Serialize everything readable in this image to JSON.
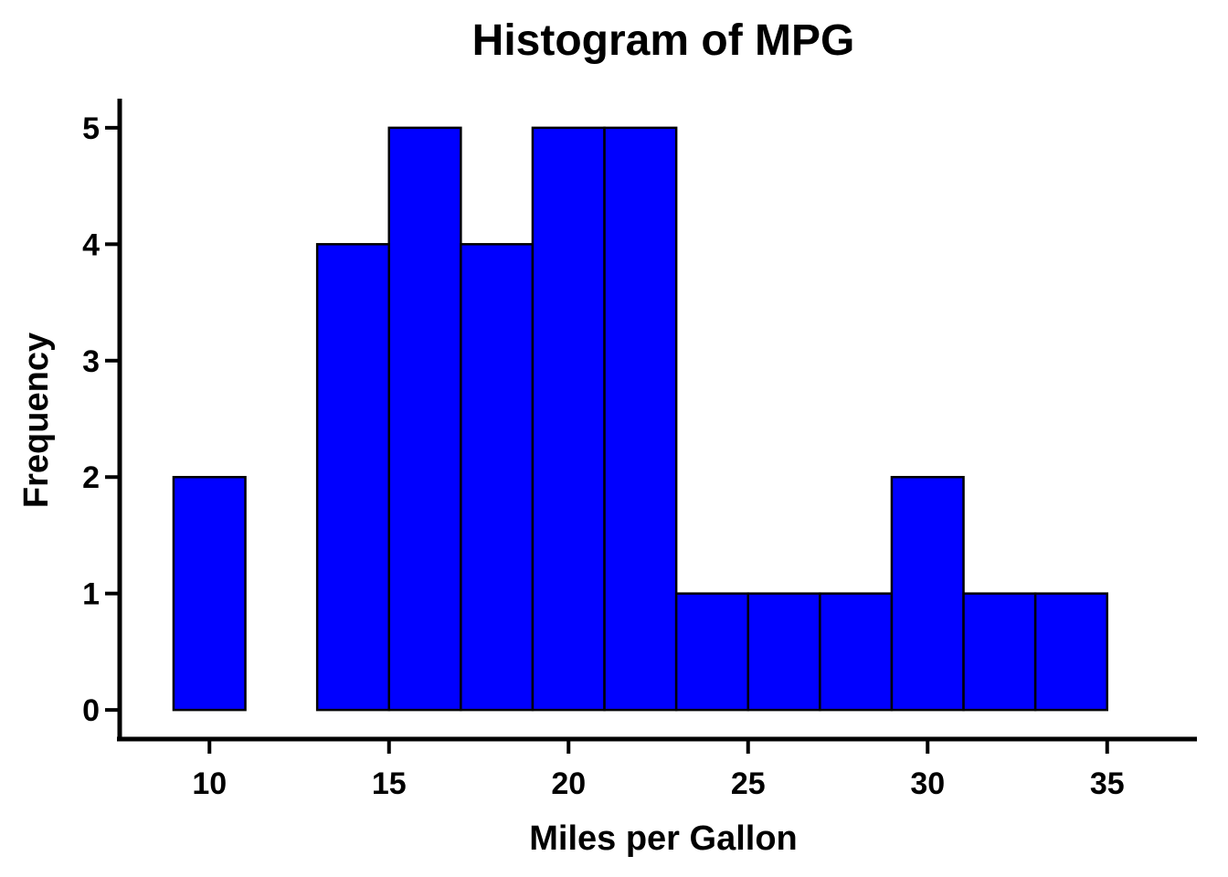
{
  "chart_data": {
    "type": "bar",
    "title": "Histogram of MPG",
    "xlabel": "Miles per Gallon",
    "ylabel": "Frequency",
    "bins": [
      {
        "start": 9,
        "end": 11,
        "count": 2
      },
      {
        "start": 11,
        "end": 13,
        "count": 0
      },
      {
        "start": 13,
        "end": 15,
        "count": 4
      },
      {
        "start": 15,
        "end": 17,
        "count": 5
      },
      {
        "start": 17,
        "end": 19,
        "count": 4
      },
      {
        "start": 19,
        "end": 21,
        "count": 5
      },
      {
        "start": 21,
        "end": 23,
        "count": 5
      },
      {
        "start": 23,
        "end": 25,
        "count": 1
      },
      {
        "start": 25,
        "end": 27,
        "count": 1
      },
      {
        "start": 27,
        "end": 29,
        "count": 1
      },
      {
        "start": 29,
        "end": 31,
        "count": 2
      },
      {
        "start": 31,
        "end": 33,
        "count": 1
      },
      {
        "start": 33,
        "end": 35,
        "count": 1
      }
    ],
    "xticks": [
      10,
      15,
      20,
      25,
      30,
      35
    ],
    "yticks": [
      0,
      1,
      2,
      3,
      4,
      5
    ],
    "xlim": [
      7.5,
      37.5
    ],
    "ylim": [
      -0.25,
      5.25
    ],
    "grid": false,
    "legend": "none",
    "bar_color": "#0000FF",
    "edge_color": "#000000"
  }
}
